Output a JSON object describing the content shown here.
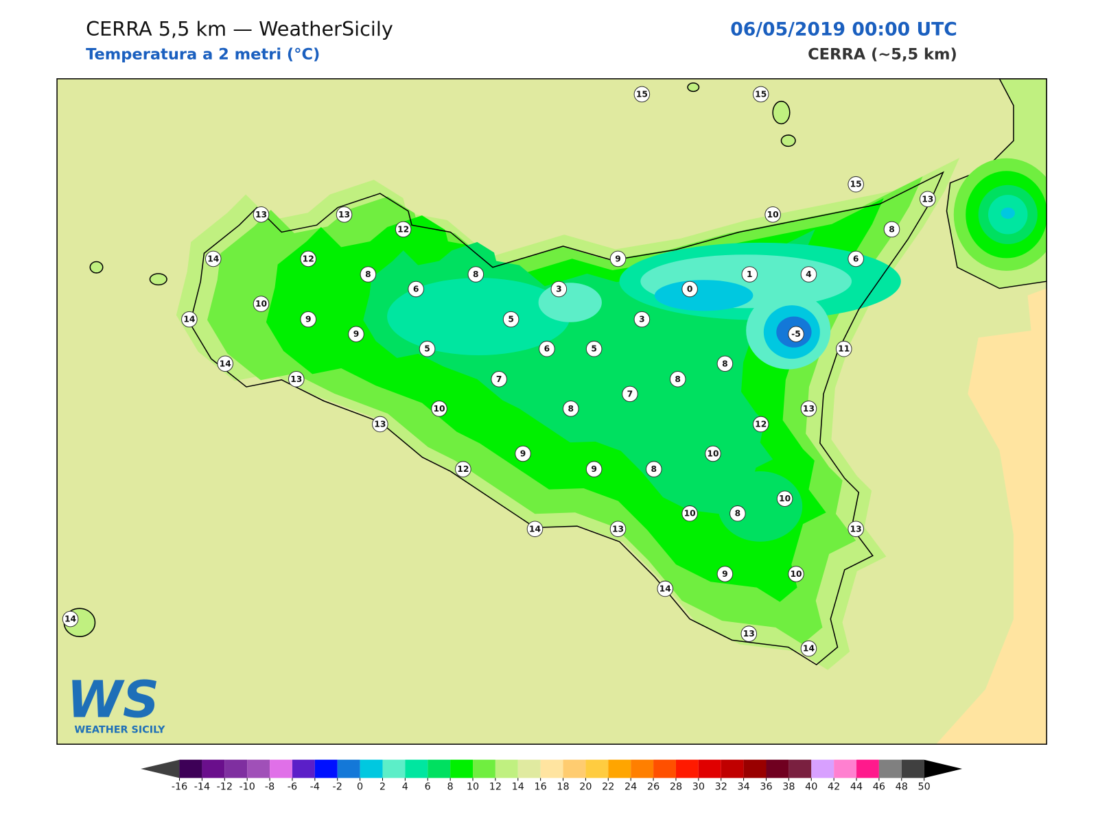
{
  "header": {
    "title": "CERRA 5,5 km — WeatherSicily",
    "subtitle": "Temperatura a 2 metri (°C)",
    "datetime": "06/05/2019 00:00 UTC",
    "model": "CERRA (~5,5 km)"
  },
  "stations": [
    15,
    15,
    15,
    13,
    10,
    8,
    6,
    4,
    1,
    0,
    13,
    13,
    12,
    14,
    12,
    8,
    8,
    9,
    6,
    3,
    3,
    -5,
    11,
    10,
    14,
    9,
    9,
    5,
    5,
    6,
    5,
    14,
    13,
    7,
    7,
    8,
    8,
    13,
    12,
    10,
    8,
    13,
    9,
    10,
    12,
    9,
    8,
    10,
    10,
    8,
    14,
    13,
    13,
    9,
    10,
    14,
    13,
    14,
    14
  ],
  "colorbar": {
    "ticks": [
      -16,
      -14,
      -12,
      -10,
      -8,
      -6,
      -4,
      -2,
      0,
      2,
      4,
      6,
      8,
      10,
      12,
      14,
      16,
      18,
      20,
      22,
      24,
      26,
      28,
      30,
      32,
      34,
      36,
      38,
      40,
      42,
      44,
      46,
      48,
      50
    ],
    "colors": [
      "#3d0057",
      "#6a0f8c",
      "#7f2fa0",
      "#a050b8",
      "#e070e8",
      "#5b1fc8",
      "#0010ff",
      "#1478d8",
      "#00c8e0",
      "#5ceec8",
      "#00e6a0",
      "#00e060",
      "#00f000",
      "#70ee40",
      "#c0f080",
      "#e0eaa0",
      "#ffe4a0",
      "#ffcc70",
      "#ffcc40",
      "#ffa500",
      "#ff7f00",
      "#ff5000",
      "#ff1a00",
      "#e00000",
      "#c00000",
      "#990000",
      "#700020",
      "#7a2040",
      "#d8a0ff",
      "#ff80d0",
      "#ff1a8c",
      "#808080",
      "#404040"
    ],
    "under_color": "#404040",
    "over_color": "#000000"
  },
  "logo": {
    "mark": "WS",
    "name": "WEATHER SICILY"
  }
}
